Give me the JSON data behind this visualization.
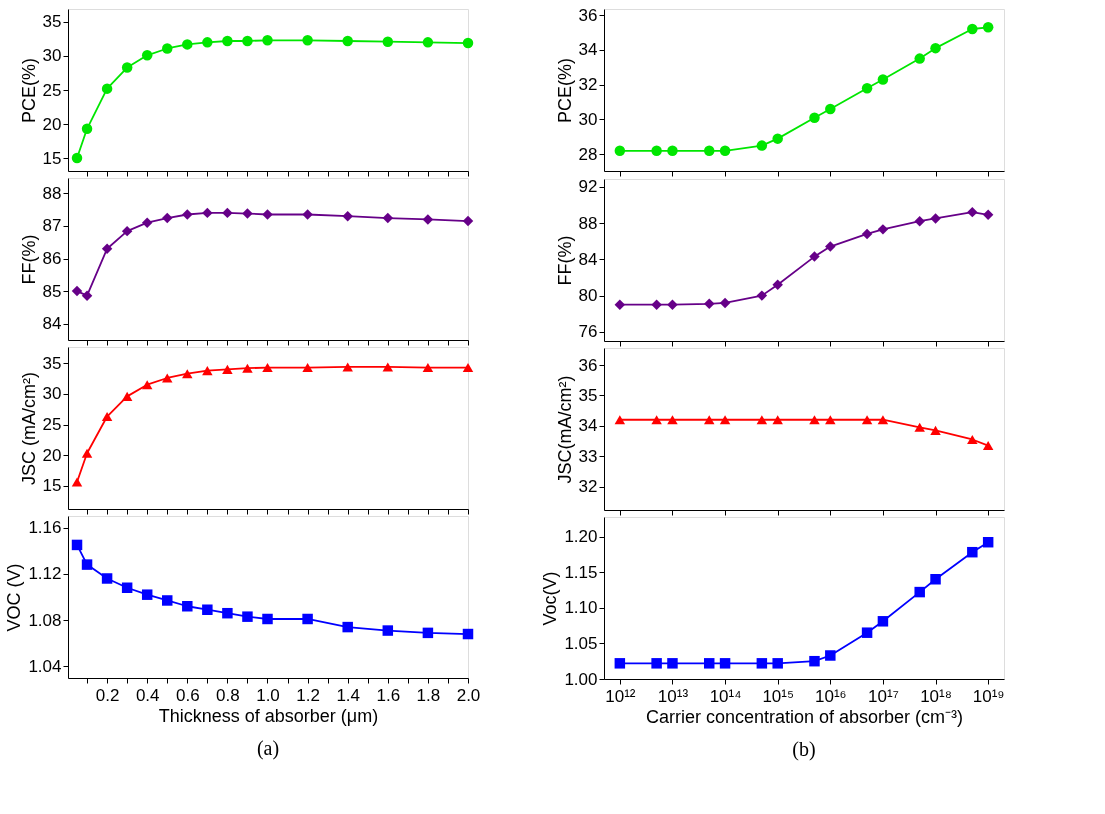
{
  "chart_data": [
    {
      "type": "line",
      "ylabel": "PCE(%)",
      "x": [
        0.05,
        0.1,
        0.2,
        0.3,
        0.4,
        0.5,
        0.6,
        0.7,
        0.8,
        0.9,
        1.0,
        1.2,
        1.4,
        1.6,
        1.8,
        2.0
      ],
      "series": [
        {
          "color": "#00e600",
          "values": [
            15.0,
            19.3,
            25.2,
            28.3,
            30.1,
            31.1,
            31.7,
            32.0,
            32.2,
            32.2,
            32.3,
            32.3,
            32.2,
            32.1,
            32.0,
            31.9
          ]
        }
      ],
      "marker": "circle",
      "line_style": "solid",
      "xlim": [
        0.005,
        2.0
      ],
      "xticks": [
        0.1,
        0.2,
        0.3,
        0.4,
        0.5,
        0.6,
        0.7,
        0.8,
        0.9,
        1,
        1.1,
        1.2,
        1.3,
        1.4,
        1.5,
        1.6,
        1.7,
        1.8,
        1.9,
        2
      ],
      "ylim": [
        13.1,
        36.9
      ],
      "yticks": [
        15,
        20,
        25,
        30,
        35
      ],
      "tick_labels": "y"
    },
    {
      "type": "line",
      "ylabel": "FF(%)",
      "x": [
        0.05,
        0.1,
        0.2,
        0.3,
        0.4,
        0.5,
        0.6,
        0.7,
        0.8,
        0.9,
        1.0,
        1.2,
        1.4,
        1.6,
        1.8,
        2.0
      ],
      "series": [
        {
          "color": "#660088",
          "values": [
            85.0,
            84.86,
            86.3,
            86.84,
            87.1,
            87.24,
            87.35,
            87.4,
            87.4,
            87.38,
            87.35,
            87.35,
            87.3,
            87.24,
            87.2,
            87.15
          ]
        }
      ],
      "marker": "diamond",
      "line_style": "solid",
      "xlim": [
        0.005,
        2.0
      ],
      "xticks": [
        0.1,
        0.2,
        0.3,
        0.4,
        0.5,
        0.6,
        0.7,
        0.8,
        0.9,
        1,
        1.1,
        1.2,
        1.3,
        1.4,
        1.5,
        1.6,
        1.7,
        1.8,
        1.9,
        2
      ],
      "ylim": [
        83.5,
        88.47
      ],
      "yticks": [
        84,
        85,
        86,
        87,
        88
      ],
      "tick_labels": "y"
    },
    {
      "type": "line",
      "ylabel": "JSC (mA/cm²)",
      "x": [
        0.05,
        0.1,
        0.2,
        0.3,
        0.4,
        0.5,
        0.6,
        0.7,
        0.8,
        0.9,
        1.0,
        1.2,
        1.4,
        1.6,
        1.8,
        2.0
      ],
      "series": [
        {
          "color": "#ff0000",
          "values": [
            15.6,
            20.3,
            26.3,
            29.6,
            31.5,
            32.6,
            33.3,
            33.8,
            34.0,
            34.2,
            34.3,
            34.3,
            34.4,
            34.4,
            34.3,
            34.3
          ]
        }
      ],
      "marker": "triangle",
      "line_style": "solid",
      "xlim": [
        0.005,
        2.0
      ],
      "xticks": [
        0.1,
        0.2,
        0.3,
        0.4,
        0.5,
        0.6,
        0.7,
        0.8,
        0.9,
        1,
        1.1,
        1.2,
        1.3,
        1.4,
        1.5,
        1.6,
        1.7,
        1.8,
        1.9,
        2
      ],
      "ylim": [
        11.2,
        37.66
      ],
      "yticks": [
        15,
        20,
        25,
        30,
        35
      ],
      "tick_labels": "y"
    },
    {
      "type": "line",
      "ylabel": "VOC (V)",
      "xlabel": "Thickness of absorber (μm)",
      "annotations": [
        "(a)"
      ],
      "x": [
        0.05,
        0.1,
        0.2,
        0.3,
        0.4,
        0.5,
        0.6,
        0.7,
        0.8,
        0.9,
        1.0,
        1.2,
        1.4,
        1.6,
        1.8,
        2.0
      ],
      "series": [
        {
          "color": "#0000ff",
          "values": [
            1.145,
            1.128,
            1.116,
            1.108,
            1.102,
            1.097,
            1.092,
            1.089,
            1.086,
            1.083,
            1.081,
            1.081,
            1.074,
            1.071,
            1.069,
            1.068
          ]
        }
      ],
      "marker": "square",
      "line_style": "solid",
      "xlim": [
        0.005,
        2.0
      ],
      "xticks": [
        {
          "value": 0.1,
          "label": null
        },
        {
          "value": 0.2,
          "label": "0.2"
        },
        {
          "value": 0.3,
          "label": null
        },
        {
          "value": 0.4,
          "label": "0.4"
        },
        {
          "value": 0.5,
          "label": null
        },
        {
          "value": 0.6,
          "label": "0.6"
        },
        {
          "value": 0.7,
          "label": null
        },
        {
          "value": 0.8,
          "label": "0.8"
        },
        {
          "value": 0.9,
          "label": null
        },
        {
          "value": 1.0,
          "label": "1.0"
        },
        {
          "value": 1.1,
          "label": null
        },
        {
          "value": 1.2,
          "label": "1.2"
        },
        {
          "value": 1.3,
          "label": null
        },
        {
          "value": 1.4,
          "label": "1.4"
        },
        {
          "value": 1.5,
          "label": null
        },
        {
          "value": 1.6,
          "label": "1.6"
        },
        {
          "value": 1.7,
          "label": null
        },
        {
          "value": 1.8,
          "label": "1.8"
        },
        {
          "value": 1.9,
          "label": null
        },
        {
          "value": 2.0,
          "label": "2.0"
        }
      ],
      "ylim": [
        1.03,
        1.17
      ],
      "yticks": [
        1.04,
        1.08,
        1.12,
        1.16
      ]
    },
    {
      "type": "line",
      "ylabel": "PCE(%)",
      "log": "x",
      "x": [
        1000000000000.0,
        5000000000000.0,
        10000000000000.0,
        50000000000000.0,
        100000000000000.0,
        500000000000000.0,
        1000000000000000.0,
        5000000000000000.0,
        1e+16,
        5e+16,
        1e+17,
        5e+17,
        1e+18,
        5e+18,
        1e+19
      ],
      "series": [
        {
          "color": "#00e600",
          "values": [
            28.2,
            28.2,
            28.2,
            28.2,
            28.2,
            28.5,
            28.9,
            30.1,
            30.6,
            31.8,
            32.3,
            33.5,
            34.1,
            35.2,
            35.3
          ]
        }
      ],
      "marker": "circle",
      "line_style": "solid",
      "xlim": [
        500000000000.0,
        2e+19
      ],
      "xticks": [
        1000000000000.0,
        10000000000000.0,
        100000000000000.0,
        1000000000000000.0,
        1e+16,
        1e+17,
        1e+18,
        1e+19
      ],
      "ylim": [
        27.04,
        36.35
      ],
      "yticks": [
        28,
        30,
        32,
        34,
        36
      ],
      "tick_labels": "y"
    },
    {
      "type": "line",
      "ylabel": "FF(%)",
      "log": "x",
      "x": [
        1000000000000.0,
        5000000000000.0,
        10000000000000.0,
        50000000000000.0,
        100000000000000.0,
        500000000000000.0,
        1000000000000000.0,
        5000000000000000.0,
        1e+16,
        5e+16,
        1e+17,
        5e+17,
        1e+18,
        5e+18,
        1e+19
      ],
      "series": [
        {
          "color": "#660088",
          "values": [
            79.0,
            79.0,
            79.0,
            79.1,
            79.2,
            80.0,
            81.2,
            84.3,
            85.4,
            86.8,
            87.3,
            88.2,
            88.5,
            89.2,
            88.9
          ]
        }
      ],
      "marker": "diamond",
      "line_style": "solid",
      "xlim": [
        500000000000.0,
        2e+19
      ],
      "xticks": [
        1000000000000.0,
        10000000000000.0,
        100000000000000.0,
        1000000000000000.0,
        1e+16,
        1e+17,
        1e+18,
        1e+19
      ],
      "ylim": [
        75.0,
        92.85
      ],
      "yticks": [
        76,
        80,
        84,
        88,
        92
      ],
      "tick_labels": "y"
    },
    {
      "type": "line",
      "ylabel": "JSC(mA/cm²)",
      "log": "x",
      "x": [
        1000000000000.0,
        5000000000000.0,
        10000000000000.0,
        50000000000000.0,
        100000000000000.0,
        500000000000000.0,
        1000000000000000.0,
        5000000000000000.0,
        1e+16,
        5e+16,
        1e+17,
        5e+17,
        1e+18,
        5e+18,
        1e+19
      ],
      "series": [
        {
          "color": "#ff0000",
          "values": [
            34.2,
            34.2,
            34.2,
            34.2,
            34.2,
            34.2,
            34.2,
            34.2,
            34.2,
            34.2,
            34.2,
            33.95,
            33.85,
            33.55,
            33.35
          ]
        }
      ],
      "marker": "triangle",
      "line_style": "solid",
      "xlim": [
        500000000000.0,
        2e+19
      ],
      "xticks": [
        1000000000000.0,
        10000000000000.0,
        100000000000000.0,
        1000000000000000.0,
        1e+16,
        1e+17,
        1e+18,
        1e+19
      ],
      "ylim": [
        31.23,
        36.56
      ],
      "yticks": [
        32,
        33,
        34,
        35,
        36
      ],
      "tick_labels": "y"
    },
    {
      "type": "line",
      "ylabel": "Voc(V)",
      "xlabel": "Carrier concentration of absorber (cm⁻³)",
      "annotations": [
        "(b)"
      ],
      "log": "x",
      "x": [
        1000000000000.0,
        5000000000000.0,
        10000000000000.0,
        50000000000000.0,
        100000000000000.0,
        500000000000000.0,
        1000000000000000.0,
        5000000000000000.0,
        1e+16,
        5e+16,
        1e+17,
        5e+17,
        1e+18,
        5e+18,
        1e+19
      ],
      "series": [
        {
          "color": "#0000ff",
          "values": [
            1.022,
            1.022,
            1.022,
            1.022,
            1.022,
            1.022,
            1.022,
            1.025,
            1.033,
            1.065,
            1.081,
            1.122,
            1.14,
            1.178,
            1.192
          ]
        }
      ],
      "marker": "square",
      "line_style": "solid",
      "xlim": [
        500000000000.0,
        2e+19
      ],
      "xticks": [
        {
          "value": 1000000000000.0,
          "label": "10¹²"
        },
        {
          "value": 10000000000000.0,
          "label": "10¹³"
        },
        {
          "value": 100000000000000.0,
          "label": "10¹⁴"
        },
        {
          "value": 1000000000000000.0,
          "label": "10¹⁵"
        },
        {
          "value": 1e+16,
          "label": "10¹⁶"
        },
        {
          "value": 1e+17,
          "label": "10¹⁷"
        },
        {
          "value": 1e+18,
          "label": "10¹⁸"
        },
        {
          "value": 1e+19,
          "label": "10¹⁹"
        }
      ],
      "ylim": [
        1.0,
        1.2274
      ],
      "yticks": [
        {
          "value": 1.0,
          "label": "1.00"
        },
        {
          "value": 1.05,
          "label": "1.05"
        },
        {
          "value": 1.1,
          "label": "1.10"
        },
        {
          "value": 1.15,
          "label": "1.15"
        },
        {
          "value": 1.2,
          "label": "1.20"
        }
      ]
    }
  ]
}
